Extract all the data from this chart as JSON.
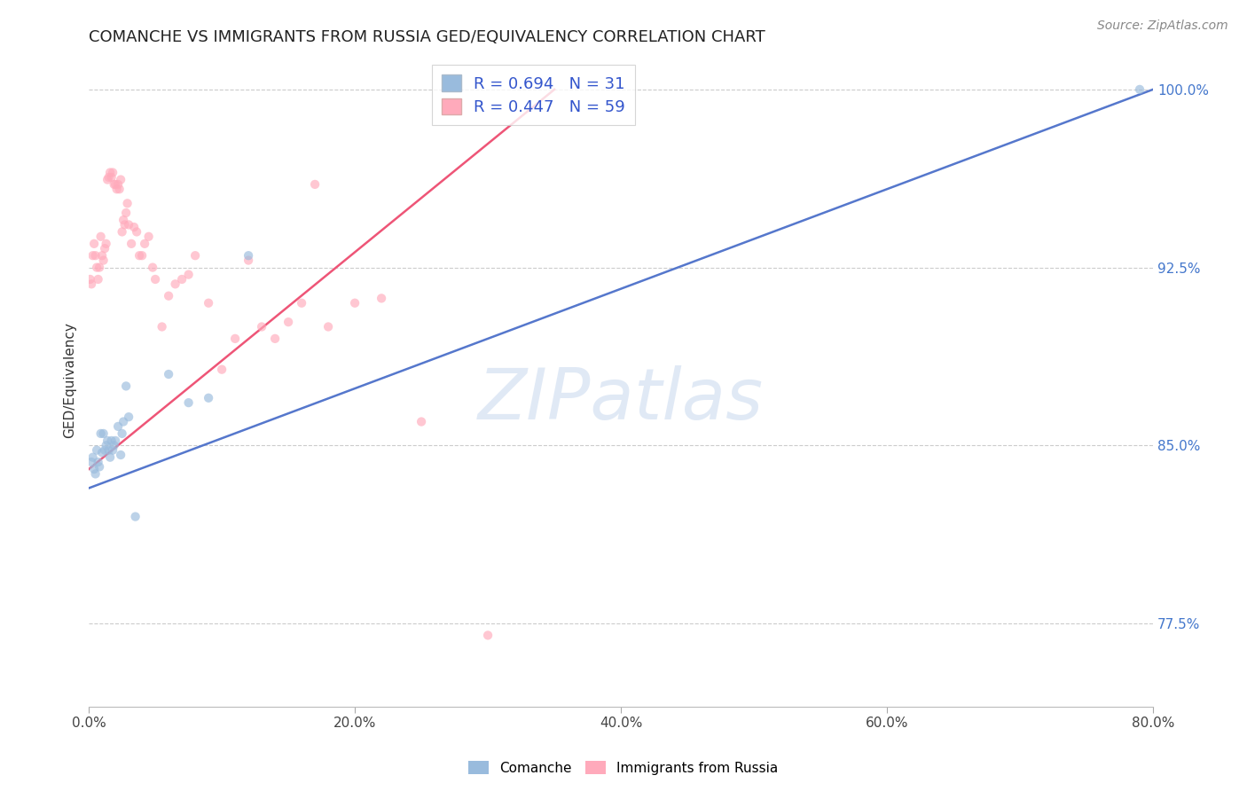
{
  "title": "COMANCHE VS IMMIGRANTS FROM RUSSIA GED/EQUIVALENCY CORRELATION CHART",
  "source": "Source: ZipAtlas.com",
  "xmin": 0.0,
  "xmax": 0.8,
  "ymin": 0.74,
  "ymax": 1.015,
  "x_tick_vals": [
    0.0,
    0.2,
    0.4,
    0.6,
    0.8
  ],
  "x_tick_labels": [
    "0.0%",
    "20.0%",
    "40.0%",
    "60.0%",
    "80.0%"
  ],
  "y_tick_vals": [
    0.775,
    0.85,
    0.925,
    1.0
  ],
  "y_tick_labels": [
    "77.5%",
    "85.0%",
    "92.5%",
    "100.0%"
  ],
  "blue_scatter_x": [
    0.002,
    0.003,
    0.004,
    0.005,
    0.006,
    0.007,
    0.008,
    0.009,
    0.01,
    0.011,
    0.012,
    0.013,
    0.014,
    0.015,
    0.016,
    0.017,
    0.018,
    0.019,
    0.02,
    0.022,
    0.024,
    0.025,
    0.026,
    0.028,
    0.03,
    0.035,
    0.06,
    0.075,
    0.09,
    0.12,
    0.79
  ],
  "blue_scatter_y": [
    0.843,
    0.845,
    0.84,
    0.838,
    0.848,
    0.843,
    0.841,
    0.855,
    0.847,
    0.855,
    0.848,
    0.85,
    0.852,
    0.848,
    0.845,
    0.852,
    0.848,
    0.85,
    0.852,
    0.858,
    0.846,
    0.855,
    0.86,
    0.875,
    0.862,
    0.82,
    0.88,
    0.868,
    0.87,
    0.93,
    1.0
  ],
  "pink_scatter_x": [
    0.001,
    0.002,
    0.003,
    0.004,
    0.005,
    0.006,
    0.007,
    0.008,
    0.009,
    0.01,
    0.011,
    0.012,
    0.013,
    0.014,
    0.015,
    0.016,
    0.017,
    0.018,
    0.019,
    0.02,
    0.021,
    0.022,
    0.023,
    0.024,
    0.025,
    0.026,
    0.027,
    0.028,
    0.029,
    0.03,
    0.032,
    0.034,
    0.036,
    0.038,
    0.04,
    0.042,
    0.045,
    0.048,
    0.05,
    0.055,
    0.06,
    0.065,
    0.07,
    0.075,
    0.08,
    0.09,
    0.1,
    0.11,
    0.12,
    0.13,
    0.14,
    0.15,
    0.16,
    0.17,
    0.18,
    0.2,
    0.22,
    0.25,
    0.3
  ],
  "pink_scatter_y": [
    0.92,
    0.918,
    0.93,
    0.935,
    0.93,
    0.925,
    0.92,
    0.925,
    0.938,
    0.93,
    0.928,
    0.933,
    0.935,
    0.962,
    0.963,
    0.965,
    0.963,
    0.965,
    0.96,
    0.96,
    0.958,
    0.96,
    0.958,
    0.962,
    0.94,
    0.945,
    0.943,
    0.948,
    0.952,
    0.943,
    0.935,
    0.942,
    0.94,
    0.93,
    0.93,
    0.935,
    0.938,
    0.925,
    0.92,
    0.9,
    0.913,
    0.918,
    0.92,
    0.922,
    0.93,
    0.91,
    0.882,
    0.895,
    0.928,
    0.9,
    0.895,
    0.902,
    0.91,
    0.96,
    0.9,
    0.91,
    0.912,
    0.86,
    0.77
  ],
  "blue_line_x": [
    0.0,
    0.8
  ],
  "blue_line_y": [
    0.832,
    1.0
  ],
  "pink_line_x": [
    0.0,
    0.35
  ],
  "pink_line_y": [
    0.84,
    1.0
  ],
  "blue_color": "#99bbdd",
  "pink_color": "#ffaabb",
  "blue_line_color": "#5577cc",
  "pink_line_color": "#ee5577",
  "scatter_size": 55,
  "scatter_alpha": 0.65,
  "grid_color": "#cccccc",
  "background_color": "#ffffff",
  "ylabel": "GED/Equivalency",
  "title_fontsize": 13,
  "axis_label_fontsize": 11,
  "tick_fontsize": 11,
  "source_fontsize": 10,
  "watermark_text": "ZIPatlas",
  "legend_label_blue": "R = 0.694   N = 31",
  "legend_label_pink": "R = 0.447   N = 59",
  "bottom_legend_blue": "Comanche",
  "bottom_legend_pink": "Immigrants from Russia"
}
